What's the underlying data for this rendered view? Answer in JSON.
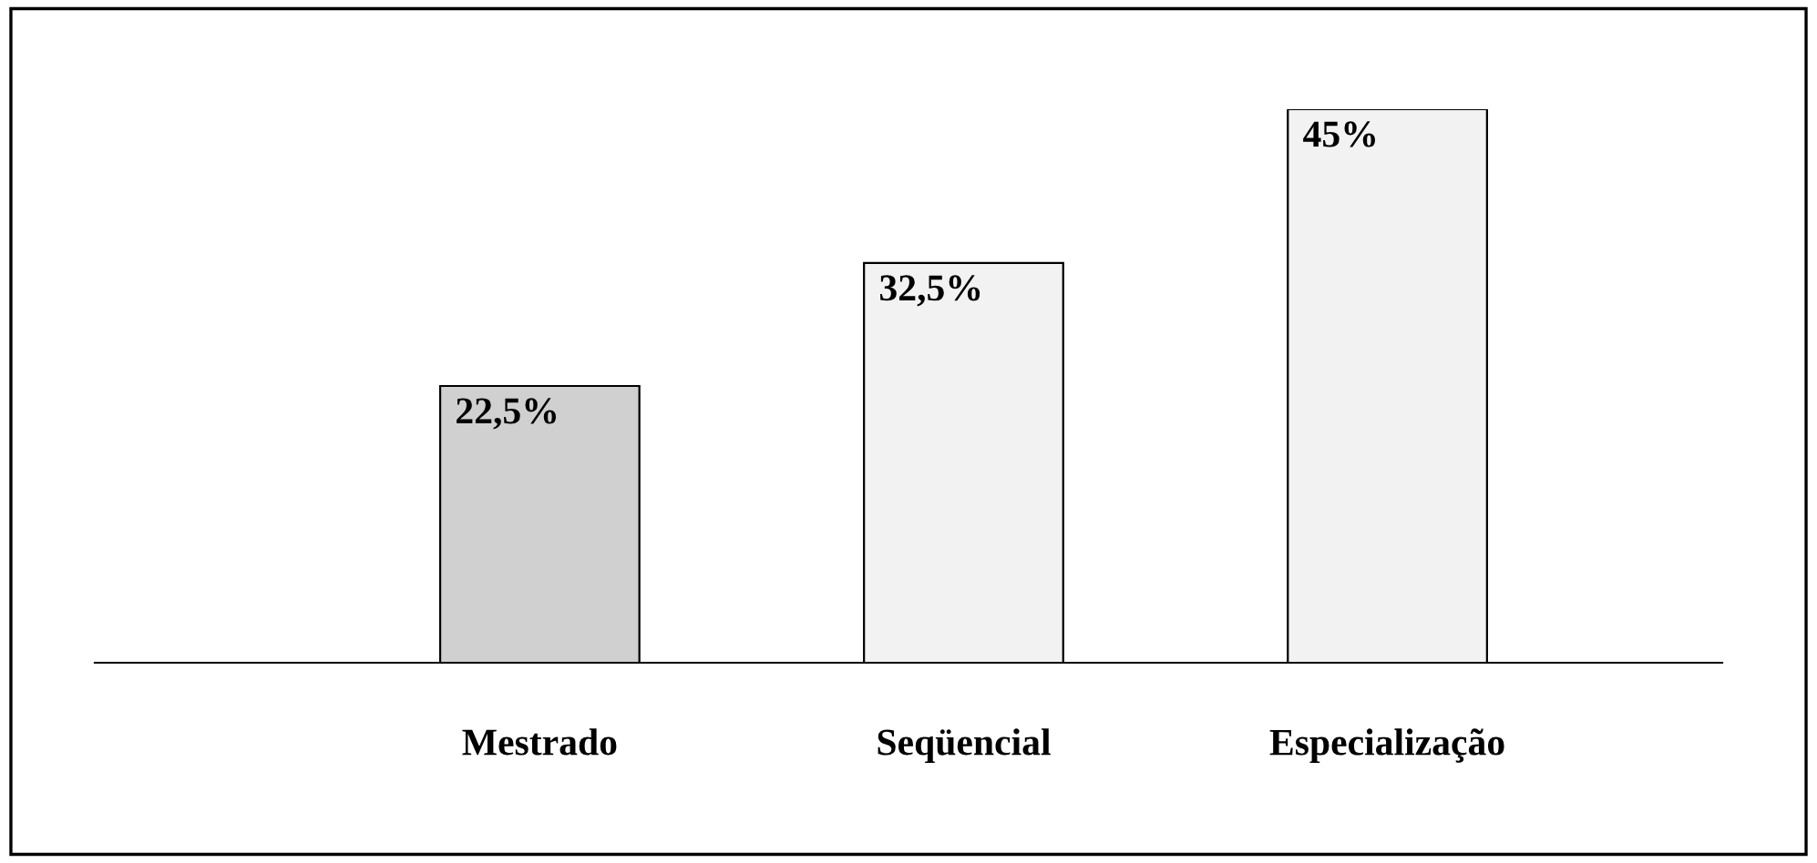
{
  "chart_data": {
    "type": "bar",
    "categories": [
      "Mestrado",
      "Seqüencial",
      "Especialização"
    ],
    "values": [
      22.5,
      32.5,
      45
    ],
    "value_labels": [
      "22,5%",
      "32,5%",
      "45%"
    ],
    "colors": [
      "#d0d0d0",
      "#f2f2f2",
      "#f2f2f2"
    ],
    "grid": false,
    "legend": false
  }
}
